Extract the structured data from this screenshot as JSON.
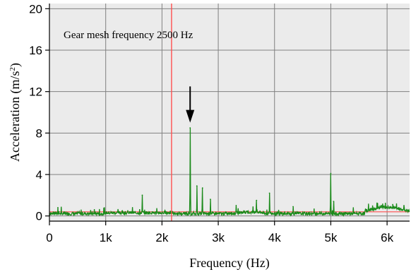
{
  "chart_data": {
    "type": "line",
    "title": "",
    "xlabel": "Frequency (Hz)",
    "ylabel_prefix": "Acceleration (m/s",
    "ylabel_sup": "2",
    "ylabel_suffix": ")",
    "xlim": [
      0,
      6400
    ],
    "ylim": [
      -0.5,
      20.5
    ],
    "x_ticks": [
      0,
      1000,
      2000,
      3000,
      4000,
      5000,
      6000
    ],
    "x_tick_labels": [
      "0",
      "1k",
      "2k",
      "3k",
      "4k",
      "5k",
      "6k"
    ],
    "y_ticks": [
      0,
      4,
      8,
      12,
      16,
      20
    ],
    "y_tick_labels": [
      "0",
      "4",
      "8",
      "12",
      "16",
      "20"
    ],
    "grid": true,
    "background_color": "#ebebeb",
    "grid_color": "#808080",
    "annotation": {
      "text": "Gear mesh frequency 2500 Hz",
      "marker_vline_x": 2170,
      "marker_color": "#ff5050",
      "arrow_x": 2500,
      "arrow_from_y": 12.5,
      "arrow_to_y": 9
    },
    "reference_line": {
      "y": 0.4,
      "color": "#ff5050"
    },
    "series": [
      {
        "color": "#1a8a1a",
        "noise_floor": 0.25,
        "peaks": [
          {
            "x": 150,
            "y": 0.8
          },
          {
            "x": 1650,
            "y": 2.0
          },
          {
            "x": 2500,
            "y": 8.5
          },
          {
            "x": 2620,
            "y": 2.9
          },
          {
            "x": 2720,
            "y": 2.7
          },
          {
            "x": 2860,
            "y": 1.6
          },
          {
            "x": 3680,
            "y": 1.5
          },
          {
            "x": 3910,
            "y": 2.2
          },
          {
            "x": 4330,
            "y": 0.9
          },
          {
            "x": 5000,
            "y": 4.1
          },
          {
            "x": 5050,
            "y": 1.4
          },
          {
            "x": 5830,
            "y": 1.2
          },
          {
            "x": 6100,
            "y": 1.1
          },
          {
            "x": 6300,
            "y": 1.0
          }
        ]
      }
    ]
  }
}
